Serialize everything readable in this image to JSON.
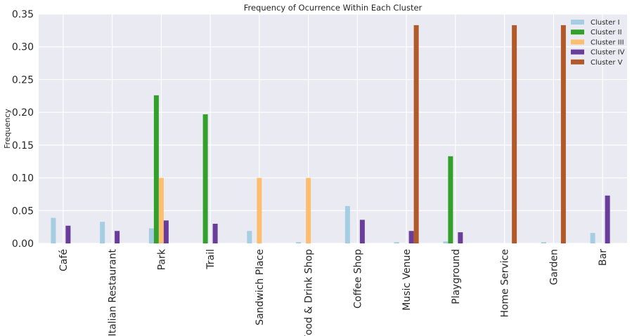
{
  "chart_data": {
    "type": "bar",
    "title": "Frequency of Ocurrence Within Each Cluster",
    "xlabel": "",
    "ylabel": "Frequency",
    "ylim": [
      0,
      0.35
    ],
    "yticks": [
      "0.00",
      "0.05",
      "0.10",
      "0.15",
      "0.20",
      "0.25",
      "0.30",
      "0.35"
    ],
    "grid": true,
    "legend_position": "top-right",
    "categories": [
      "Café",
      "Italian Restaurant",
      "Park",
      "Trail",
      "Sandwich Place",
      "Food & Drink Shop",
      "Coffee Shop",
      "Music Venue",
      "Playground",
      "Home Service",
      "Garden",
      "Bar"
    ],
    "series": [
      {
        "name": "Cluster I",
        "color": "#a6cee3",
        "values": [
          0.039,
          0.033,
          0.023,
          0.0,
          0.019,
          0.002,
          0.057,
          0.002,
          0.003,
          0.0,
          0.002,
          0.016
        ]
      },
      {
        "name": "Cluster II",
        "color": "#33a02c",
        "values": [
          0.0,
          0.0,
          0.226,
          0.197,
          0.0,
          0.0,
          0.0,
          0.0,
          0.133,
          0.0,
          0.0,
          0.0
        ]
      },
      {
        "name": "Cluster III",
        "color": "#fdbf6f",
        "values": [
          0.0,
          0.0,
          0.1,
          0.0,
          0.1,
          0.1,
          0.0,
          0.0,
          0.0,
          0.0,
          0.0,
          0.0
        ]
      },
      {
        "name": "Cluster IV",
        "color": "#6a3d9a",
        "values": [
          0.027,
          0.019,
          0.035,
          0.03,
          0.0,
          0.0,
          0.036,
          0.019,
          0.017,
          0.0,
          0.0,
          0.073
        ]
      },
      {
        "name": "Cluster V",
        "color": "#b15928",
        "values": [
          0.0,
          0.0,
          0.0,
          0.0,
          0.0,
          0.0,
          0.0,
          0.333,
          0.0,
          0.333,
          0.333,
          0.0
        ]
      }
    ]
  }
}
